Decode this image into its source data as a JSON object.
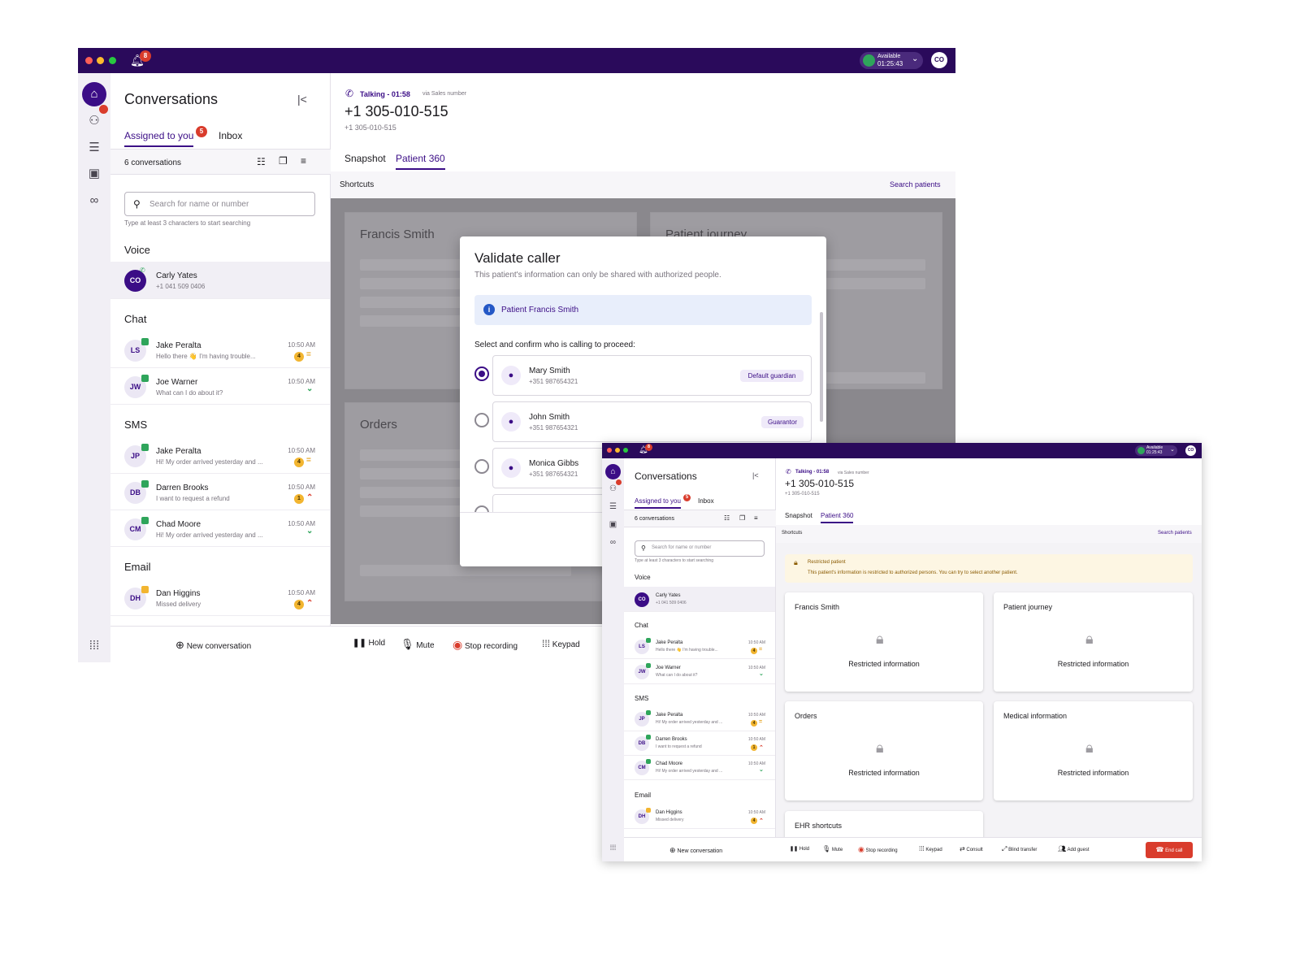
{
  "app": {
    "title": "Conversations",
    "notification_count": "8",
    "status": {
      "label": "Available",
      "timer": "01:25:43"
    },
    "avatar": "CO"
  },
  "tabs": {
    "assigned": "Assigned to you",
    "assigned_count": "5",
    "inbox": "Inbox"
  },
  "list": {
    "count": "6 conversations",
    "search_placeholder": "Search for name or number",
    "search_hint": "Type at least 3 characters to start searching",
    "sections": {
      "voice": "Voice",
      "chat": "Chat",
      "sms": "SMS",
      "email": "Email"
    },
    "voice": [
      {
        "initials": "CO",
        "name": "Carly Yates",
        "sub": "+1 041 509 0406"
      }
    ],
    "chat": [
      {
        "initials": "LS",
        "name": "Jake Peralta",
        "sub": "Hello there 👋 I'm having trouble...",
        "time": "10:50 AM",
        "count": "4",
        "priority": "=",
        "chip": "#2fa55b"
      },
      {
        "initials": "JW",
        "name": "Joe Warner",
        "sub": "What can I do about it?",
        "time": "10:50 AM",
        "count": "",
        "priority": "⌄",
        "chip": "#2fa55b"
      }
    ],
    "sms": [
      {
        "initials": "JP",
        "name": "Jake Peralta",
        "sub": "Hi! My order arrived yesterday and ...",
        "time": "10:50 AM",
        "count": "4",
        "priority": "=",
        "chip": "#2fa55b"
      },
      {
        "initials": "DB",
        "name": "Darren Brooks",
        "sub": "I want to request a refund",
        "time": "10:50 AM",
        "count": "1",
        "priority": "⌃",
        "chip": "#2fa55b"
      },
      {
        "initials": "CM",
        "name": "Chad Moore",
        "sub": "Hi! My order arrived yesterday and ...",
        "time": "10:50 AM",
        "count": "",
        "priority": "⌄",
        "chip": "#2fa55b"
      }
    ],
    "email": [
      {
        "initials": "DH",
        "name": "Dan Higgins",
        "sub": "Missed delivery",
        "time": "10:50 AM",
        "count": "4",
        "priority": "⌃",
        "chip": "#f2b530"
      }
    ],
    "new_conversation": "New conversation"
  },
  "call": {
    "status": "Talking - 01:58",
    "via": "via Sales number",
    "number": "+1 305-010-515",
    "subnumber": "+1 305-010-515",
    "tab_snapshot": "Snapshot",
    "tab_patient360": "Patient 360",
    "shortcuts": "Shortcuts",
    "search_patients": "Search patients"
  },
  "validate_modal": {
    "title": "Validate caller",
    "subtitle": "This patient's information can only be shared with authorized people.",
    "patient_info": "Patient Francis Smith",
    "prompt": "Select and confirm who is calling to proceed:",
    "people": [
      {
        "name": "Mary Smith",
        "phone": "+351 987654321",
        "tag": "Default guardian",
        "selected": true
      },
      {
        "name": "John Smith",
        "phone": "+351 987654321",
        "tag": "Guarantor",
        "selected": false
      },
      {
        "name": "Monica Gibbs",
        "phone": "+351 987654321",
        "tag": "",
        "selected": false
      }
    ]
  },
  "back_cards": {
    "patient_name": "Francis Smith",
    "journey": "Patient journey",
    "orders": "Orders"
  },
  "toolbar": {
    "hold": "Hold",
    "mute": "Mute",
    "stop_recording": "Stop recording",
    "keypad": "Keypad",
    "consult": "Consult",
    "blind_transfer": "Blind transfer",
    "add_guest": "Add guest",
    "end_call": "End call"
  },
  "restricted": {
    "title": "Restricted patient",
    "message": "This patient's information is restricted to authorized persons. You can try to select another patient.",
    "label": "Restricted information",
    "cards": [
      "Francis Smith",
      "Patient journey",
      "Orders",
      "Medical information"
    ],
    "ehr": "EHR shortcuts"
  },
  "colors": {
    "brand": "#2a0a5b",
    "accent": "#3b0d86",
    "danger": "#d93c2c",
    "warning": "#f2b530"
  }
}
